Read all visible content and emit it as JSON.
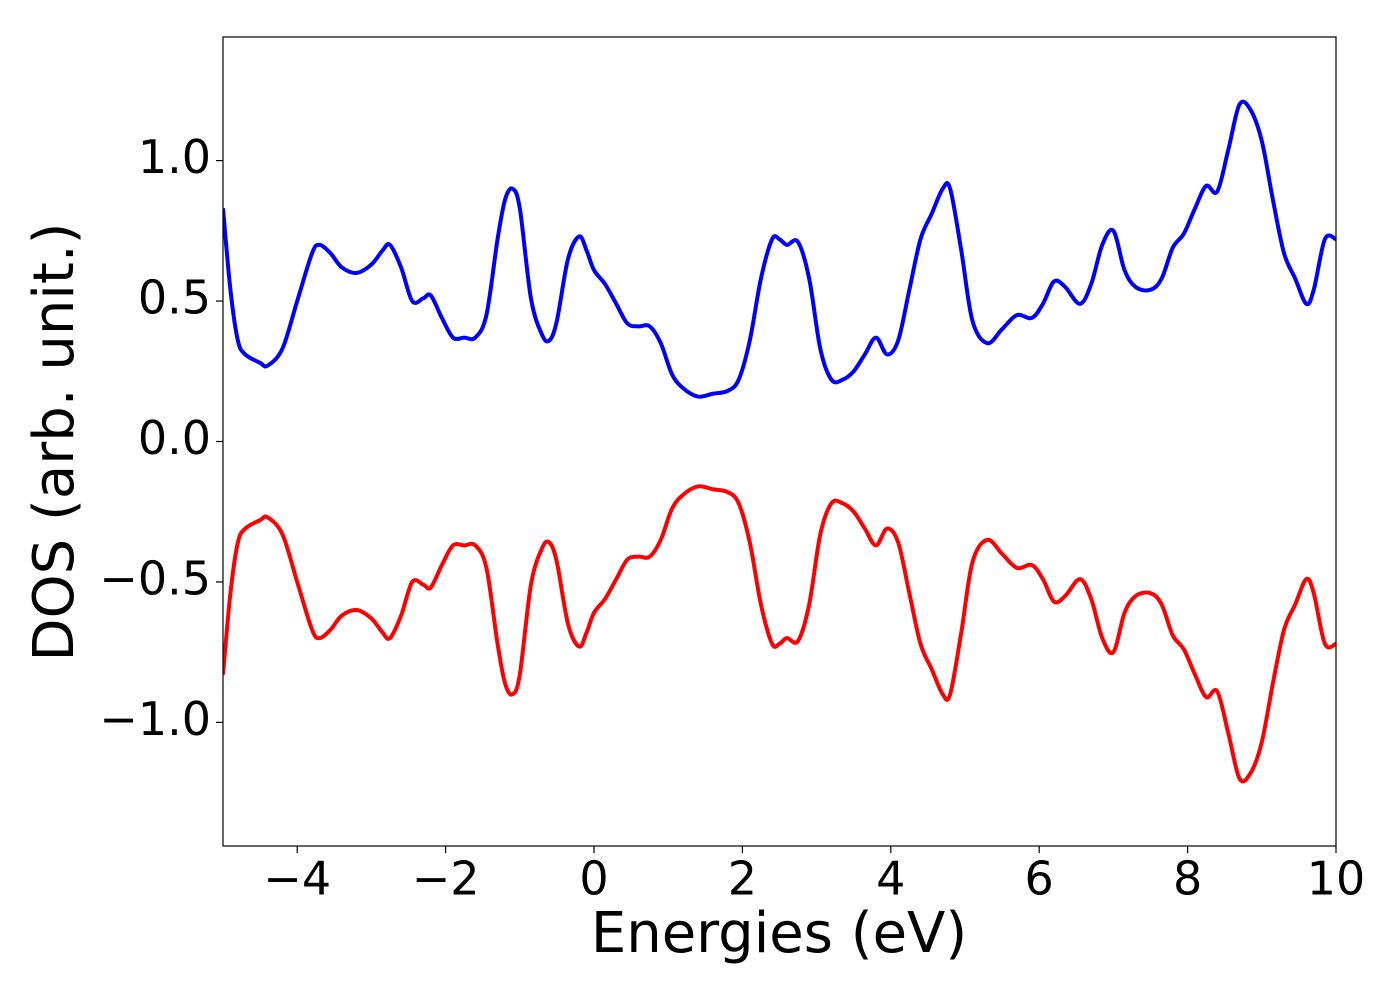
{
  "chart_data": {
    "type": "line",
    "x_label": "Energies (eV)",
    "y_label": "DOS (arb. unit.)",
    "xlim": [
      -5,
      10
    ],
    "ylim": [
      -1.44,
      1.44
    ],
    "xticks": [
      {
        "value": -4,
        "label": "−4"
      },
      {
        "value": -2,
        "label": "−2"
      },
      0,
      2,
      4,
      6,
      8,
      10
    ],
    "yticks": [
      {
        "value": -1,
        "label": "−1.0"
      },
      {
        "value": -0.5,
        "label": "−0.5"
      },
      {
        "value": 0,
        "label": "0.0"
      },
      0.5,
      {
        "value": 1,
        "label": "1.0"
      }
    ],
    "grid": false,
    "x": [
      -5,
      -4.9,
      -4.8,
      -4.7,
      -4.5,
      -4.4,
      -4.2,
      -4.0,
      -3.8,
      -3.7,
      -3.55,
      -3.4,
      -3.2,
      -3.0,
      -2.85,
      -2.75,
      -2.6,
      -2.45,
      -2.3,
      -2.2,
      -2.05,
      -1.9,
      -1.75,
      -1.6,
      -1.45,
      -1.3,
      -1.2,
      -1.1,
      -1.0,
      -0.85,
      -0.7,
      -0.6,
      -0.5,
      -0.35,
      -0.2,
      -0.1,
      0.0,
      0.15,
      0.3,
      0.45,
      0.6,
      0.75,
      0.9,
      1.05,
      1.2,
      1.4,
      1.6,
      1.8,
      1.95,
      2.1,
      2.25,
      2.4,
      2.5,
      2.6,
      2.75,
      2.9,
      3.05,
      3.2,
      3.35,
      3.5,
      3.65,
      3.8,
      3.95,
      4.1,
      4.25,
      4.4,
      4.55,
      4.7,
      4.8,
      4.95,
      5.1,
      5.3,
      5.5,
      5.7,
      5.9,
      6.05,
      6.2,
      6.35,
      6.55,
      6.7,
      6.85,
      7.0,
      7.15,
      7.3,
      7.5,
      7.65,
      7.8,
      7.95,
      8.1,
      8.25,
      8.4,
      8.55,
      8.7,
      8.85,
      9.0,
      9.15,
      9.3,
      9.45,
      9.6,
      9.7,
      9.85,
      10
    ],
    "series": [
      {
        "color": "#0000ff",
        "values": [
          0.83,
          0.54,
          0.36,
          0.31,
          0.28,
          0.27,
          0.33,
          0.5,
          0.67,
          0.7,
          0.67,
          0.62,
          0.6,
          0.63,
          0.68,
          0.7,
          0.62,
          0.5,
          0.51,
          0.52,
          0.44,
          0.37,
          0.37,
          0.37,
          0.45,
          0.72,
          0.86,
          0.9,
          0.83,
          0.51,
          0.38,
          0.36,
          0.43,
          0.65,
          0.73,
          0.68,
          0.61,
          0.56,
          0.49,
          0.42,
          0.41,
          0.41,
          0.35,
          0.24,
          0.19,
          0.16,
          0.17,
          0.18,
          0.22,
          0.36,
          0.58,
          0.72,
          0.72,
          0.7,
          0.71,
          0.58,
          0.33,
          0.22,
          0.22,
          0.25,
          0.31,
          0.37,
          0.31,
          0.36,
          0.54,
          0.72,
          0.81,
          0.9,
          0.9,
          0.68,
          0.43,
          0.35,
          0.4,
          0.45,
          0.44,
          0.49,
          0.57,
          0.55,
          0.49,
          0.56,
          0.7,
          0.75,
          0.61,
          0.55,
          0.54,
          0.58,
          0.69,
          0.74,
          0.83,
          0.91,
          0.89,
          1.04,
          1.2,
          1.18,
          1.07,
          0.86,
          0.67,
          0.58,
          0.49,
          0.54,
          0.72,
          0.72
        ]
      },
      {
        "color": "#ff0000",
        "values": [
          -0.83,
          -0.54,
          -0.36,
          -0.31,
          -0.28,
          -0.27,
          -0.33,
          -0.5,
          -0.67,
          -0.7,
          -0.67,
          -0.62,
          -0.6,
          -0.63,
          -0.68,
          -0.7,
          -0.62,
          -0.5,
          -0.51,
          -0.52,
          -0.44,
          -0.37,
          -0.37,
          -0.37,
          -0.45,
          -0.72,
          -0.86,
          -0.9,
          -0.83,
          -0.51,
          -0.38,
          -0.36,
          -0.43,
          -0.65,
          -0.73,
          -0.68,
          -0.61,
          -0.56,
          -0.49,
          -0.42,
          -0.41,
          -0.41,
          -0.35,
          -0.24,
          -0.19,
          -0.16,
          -0.17,
          -0.18,
          -0.22,
          -0.36,
          -0.58,
          -0.72,
          -0.72,
          -0.7,
          -0.71,
          -0.58,
          -0.33,
          -0.22,
          -0.22,
          -0.25,
          -0.31,
          -0.37,
          -0.31,
          -0.36,
          -0.54,
          -0.72,
          -0.81,
          -0.9,
          -0.9,
          -0.68,
          -0.43,
          -0.35,
          -0.4,
          -0.45,
          -0.44,
          -0.49,
          -0.57,
          -0.55,
          -0.49,
          -0.56,
          -0.7,
          -0.75,
          -0.61,
          -0.55,
          -0.54,
          -0.58,
          -0.69,
          -0.74,
          -0.83,
          -0.91,
          -0.89,
          -1.04,
          -1.2,
          -1.18,
          -1.07,
          -0.86,
          -0.67,
          -0.58,
          -0.49,
          -0.54,
          -0.72,
          -0.72
        ]
      }
    ]
  }
}
